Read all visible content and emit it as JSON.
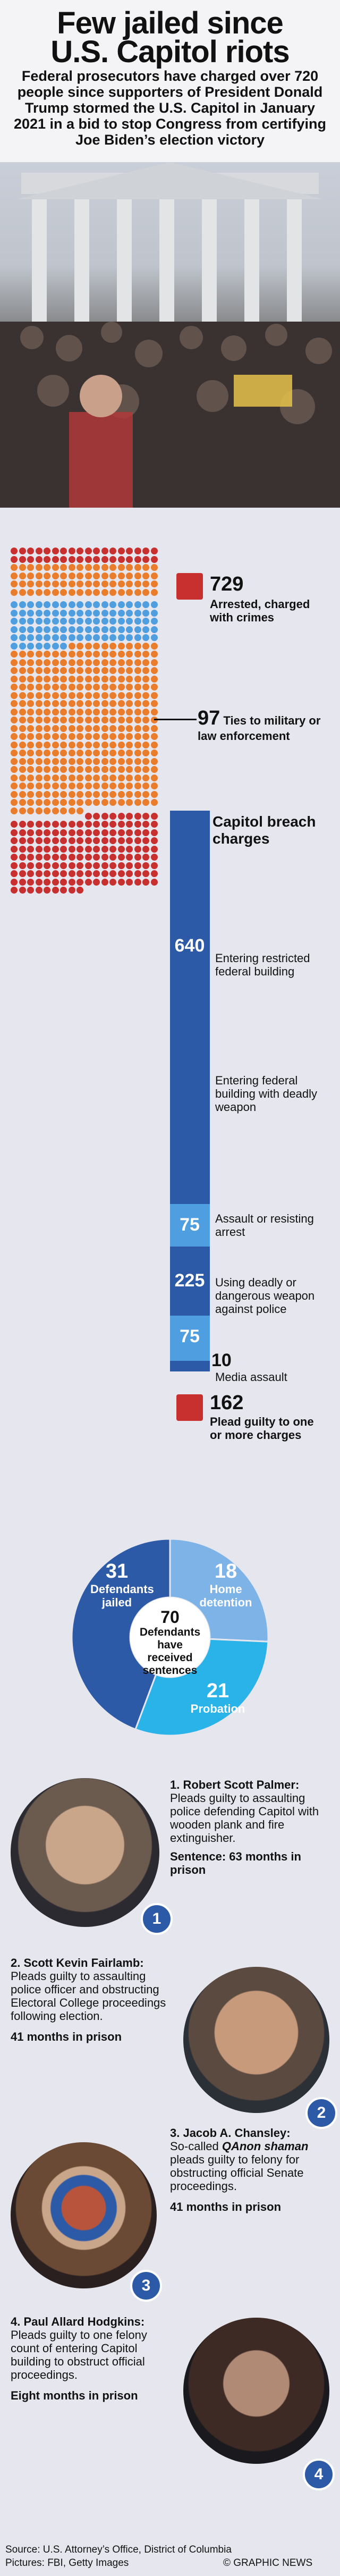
{
  "header": {
    "title_line1": "Few jailed since",
    "title_line2": "U.S. Capitol riots",
    "subtitle": "Federal prosecutors have charged over 720 people since supporters of President Donald Trump stormed the U.S. Capitol in January 2021 in a bid to stop Congress from certifying Joe Biden’s election victory"
  },
  "colors": {
    "red": "#c8302f",
    "orange": "#ea7d2c",
    "light_blue": "#4f9ee0",
    "dark_blue": "#2d5aa6",
    "mid_blue": "#7eb3e8",
    "cyan": "#29b3e8"
  },
  "chart_data": [
    {
      "type": "bar",
      "title": "",
      "groups": [
        {
          "label": "Arrested, charged with crimes",
          "value": 729
        },
        {
          "label": "Ties to military or law enforcement",
          "value": 97
        },
        {
          "label": "Plead guilty to one or more charges",
          "value": 162
        }
      ],
      "subtitle": "Capitol breach charges",
      "categories": [
        "Entering restricted federal building",
        "Entering federal building with deadly weapon",
        "Assault or resisting arrest",
        "Using deadly or dangerous weapon against police",
        "Media assault"
      ],
      "values": [
        640,
        75,
        225,
        75,
        10
      ]
    },
    {
      "type": "pie",
      "center_label": "70 Defendants have received sentences",
      "slices": [
        {
          "label": "Defendants jailed",
          "value": 31
        },
        {
          "label": "Home detention",
          "value": 18
        },
        {
          "label": "Probation",
          "value": 21
        }
      ]
    }
  ],
  "counts": {
    "arrested_value": "729",
    "arrested_label": "Arrested, charged with crimes",
    "ties_value": "97",
    "ties_label": "Ties to military or law enforcement",
    "breach_title": "Capitol breach charges",
    "guilty_value": "162",
    "guilty_label": "Plead guilty to one or more charges"
  },
  "breach": [
    {
      "value": "640",
      "label": "Entering restricted federal building"
    },
    {
      "value": "75",
      "label": "Entering federal building with deadly weapon"
    },
    {
      "value": "225",
      "label": "Assault or resisting arrest"
    },
    {
      "value": "75",
      "label": "Using deadly or dangerous weapon against police"
    },
    {
      "value": "10",
      "label": "Media assault"
    }
  ],
  "donut": {
    "jailed_value": "31",
    "jailed_label": "Defendants jailed",
    "home_value": "18",
    "home_label": "Home detention",
    "prob_value": "21",
    "prob_label": "Probation",
    "center_value": "70",
    "center_label": "Defendants have received sentences"
  },
  "cases": [
    {
      "num": "1",
      "name": "1. Robert Scott Palmer:",
      "desc": "Pleads guilty to assaulting police defending Capitol with wooden plank and fire extinguisher.",
      "sentence": "Sentence: 63 months in prison"
    },
    {
      "num": "2",
      "name": "2. Scott Kevin Fairlamb:",
      "desc": "Pleads guilty to assaulting police officer and obstructing Electoral College proceedings following election.",
      "sentence": "41 months in prison"
    },
    {
      "num": "3",
      "name": "3. Jacob A. Chansley:",
      "desc_pre": "So-called ",
      "desc_em": "QAnon shaman",
      "desc_post": " pleads guilty to felony for obstructing official Senate proceedings.",
      "sentence": "41 months in prison"
    },
    {
      "num": "4",
      "name": "4. Paul Allard Hodgkins:",
      "desc": "Pleads guilty to one felony count of entering Capitol building to obstruct official proceedings.",
      "sentence": "Eight months in prison"
    }
  ],
  "footer": {
    "source": "Source: U.S. Attorney’s Office, District of Columbia",
    "pictures": "Pictures: FBI, Getty Images",
    "credit": "© GRAPHIC NEWS"
  }
}
